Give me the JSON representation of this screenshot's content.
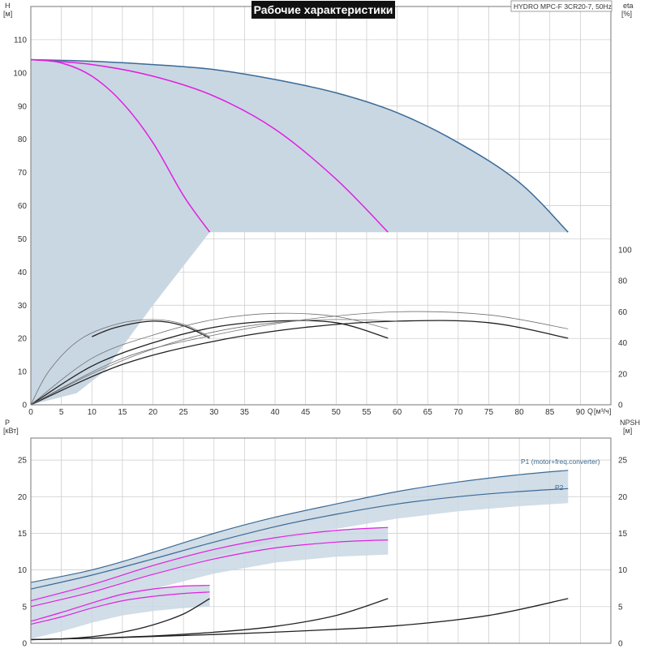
{
  "title": "Рабочие характеристики",
  "model": "HYDRO MPC-F 3CR20-7, 50Hz",
  "colors": {
    "envelope": "#c9d7e3",
    "max_curve": "#3a6a96",
    "partial_curve": "#e020e0",
    "eff_curve": "#202020",
    "eff_thin": "#707070"
  },
  "chart_data": [
    {
      "type": "line",
      "name": "H-Q and efficiency",
      "ylabel": "H",
      "yunit": "[м]",
      "y2label": "eta",
      "y2unit": "[%]",
      "xlabel": "Q",
      "xunit": "[м³/ч]",
      "xlim": [
        0,
        95
      ],
      "ylim": [
        0,
        120
      ],
      "y2lim": [
        0,
        100
      ],
      "xticks": [
        0,
        5,
        10,
        15,
        20,
        25,
        30,
        35,
        40,
        45,
        50,
        55,
        60,
        65,
        70,
        75,
        80,
        85,
        90
      ],
      "yticks": [
        0,
        10,
        20,
        30,
        40,
        50,
        60,
        70,
        80,
        90,
        100,
        110
      ],
      "y2ticks": [
        0,
        20,
        40,
        60,
        80,
        100
      ],
      "grid": true,
      "head_curves": [
        {
          "pumps": 3,
          "color": "max",
          "x": [
            0,
            10,
            20,
            30,
            40,
            50,
            60,
            70,
            80,
            88
          ],
          "y": [
            104,
            103.5,
            102.5,
            101,
            98,
            94,
            88,
            79,
            67,
            52
          ]
        },
        {
          "pumps": 2,
          "color": "partial",
          "x": [
            0,
            10,
            20,
            30,
            40,
            50,
            58.5
          ],
          "y": [
            104,
            102.5,
            99,
            93,
            83,
            68,
            52
          ]
        },
        {
          "pumps": 1,
          "color": "partial",
          "x": [
            0,
            5,
            10,
            15,
            20,
            25,
            29.3
          ],
          "y": [
            104,
            103,
            99,
            91,
            79,
            63,
            52
          ]
        }
      ],
      "envelope_lower": {
        "x": [
          0,
          7.5,
          12,
          20,
          29.3
        ],
        "y": [
          0,
          3.5,
          10,
          30,
          52
        ]
      },
      "efficiency_curves": [
        {
          "x": [
            0,
            3,
            8,
            14,
            20,
            25,
            29.3
          ],
          "y": [
            0,
            22,
            42,
            52,
            55,
            52,
            44
          ]
        },
        {
          "x": [
            10,
            14,
            20,
            25,
            29.3
          ],
          "y": [
            44,
            50,
            54,
            51,
            43
          ]
        },
        {
          "x": [
            0,
            10,
            20,
            30,
            40,
            50,
            58.5
          ],
          "y": [
            0,
            30,
            45,
            55,
            59,
            57,
            49
          ]
        },
        {
          "x": [
            0,
            10,
            20,
            30,
            40,
            50,
            58.5
          ],
          "y": [
            0,
            25,
            40,
            50,
            54,
            53,
            43
          ]
        },
        {
          "x": [
            0,
            15,
            30,
            45,
            60,
            75,
            88
          ],
          "y": [
            0,
            30,
            45,
            55,
            60,
            58,
            49
          ]
        },
        {
          "x": [
            0,
            15,
            30,
            45,
            60,
            75,
            88
          ],
          "y": [
            0,
            26,
            41,
            50,
            54,
            53,
            43
          ]
        },
        {
          "x": [
            0,
            10,
            20,
            30,
            40,
            50,
            60
          ],
          "y": [
            0,
            20,
            36,
            47,
            53,
            55,
            54
          ]
        }
      ]
    },
    {
      "type": "line",
      "name": "Power and NPSH",
      "ylabel": "P",
      "yunit": "[кВт]",
      "y2label": "NPSH",
      "y2unit": "[м]",
      "xlim": [
        0,
        95
      ],
      "ylim": [
        0,
        28
      ],
      "y2lim": [
        0,
        28
      ],
      "yticks": [
        0,
        5,
        10,
        15,
        20,
        25
      ],
      "y2ticks": [
        0,
        5,
        10,
        15,
        20,
        25
      ],
      "grid": true,
      "legend_labels": [
        "P1 (motor+freq.converter)",
        "P2"
      ],
      "power_curves": [
        {
          "series": "P1",
          "color": "max",
          "x": [
            0,
            10,
            20,
            30,
            40,
            50,
            60,
            70,
            80,
            88
          ],
          "y": [
            8.3,
            10,
            12.4,
            15,
            17.2,
            19,
            20.7,
            22,
            23,
            23.6
          ]
        },
        {
          "series": "P2",
          "color": "max",
          "x": [
            0,
            10,
            20,
            30,
            40,
            50,
            60,
            70,
            80,
            88
          ],
          "y": [
            7.4,
            9.3,
            11.5,
            13.8,
            15.9,
            17.6,
            19,
            20,
            20.7,
            21.1
          ]
        },
        {
          "series": "P1",
          "color": "partial",
          "x": [
            0,
            10,
            20,
            30,
            40,
            50,
            58.5
          ],
          "y": [
            5.8,
            8,
            10.6,
            12.8,
            14.4,
            15.4,
            15.8
          ]
        },
        {
          "series": "P2",
          "color": "partial",
          "x": [
            0,
            10,
            20,
            30,
            40,
            50,
            58.5
          ],
          "y": [
            5,
            7,
            9.4,
            11.5,
            13,
            13.8,
            14.1
          ]
        },
        {
          "series": "P1",
          "color": "partial",
          "x": [
            0,
            5,
            10,
            15,
            20,
            25,
            29.3
          ],
          "y": [
            3,
            4.2,
            5.5,
            6.7,
            7.4,
            7.8,
            7.9
          ]
        },
        {
          "series": "P2",
          "color": "partial",
          "x": [
            0,
            5,
            10,
            15,
            20,
            25,
            29.3
          ],
          "y": [
            2.6,
            3.6,
            4.8,
            5.8,
            6.4,
            6.8,
            7
          ]
        }
      ],
      "npsh_curves": [
        {
          "x": [
            0,
            5,
            10,
            15,
            20,
            25,
            29.3
          ],
          "y": [
            0.5,
            0.6,
            0.9,
            1.5,
            2.5,
            4,
            6.1
          ]
        },
        {
          "x": [
            0,
            10,
            20,
            30,
            40,
            50,
            58.5
          ],
          "y": [
            0.5,
            0.7,
            1,
            1.5,
            2.3,
            3.8,
            6.1
          ]
        },
        {
          "x": [
            0,
            15,
            30,
            45,
            60,
            75,
            88
          ],
          "y": [
            0.5,
            0.8,
            1.2,
            1.7,
            2.4,
            3.8,
            6.1
          ]
        }
      ]
    }
  ]
}
